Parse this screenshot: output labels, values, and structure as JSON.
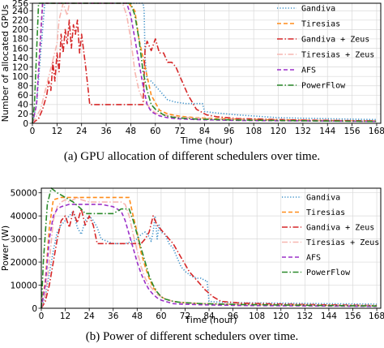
{
  "captions": {
    "top": "(a) GPU allocation of different schedulers over time.",
    "bottom": "(b) Power of different schedulers over time."
  },
  "colors": {
    "Gandiva": "#3a8fc8",
    "Tiresias": "#ff8c1a",
    "Gandiva + Zeus": "#d62728",
    "Tiresias + Zeus": "#f7b6b0",
    "AFS": "#9b30c8",
    "PowerFlow": "#2a8a2a"
  },
  "chart_data": [
    {
      "type": "line",
      "title": "",
      "xlabel": "Time (hour)",
      "ylabel": "Number of allocated GPUs",
      "xlim": [
        0,
        170
      ],
      "ylim": [
        0,
        256
      ],
      "xticks": [
        0,
        12,
        24,
        36,
        48,
        60,
        72,
        84,
        96,
        108,
        120,
        132,
        144,
        156,
        168
      ],
      "xtick_labels": [
        "0",
        "12",
        "24",
        "36",
        "48",
        "60",
        "72",
        "84",
        "96",
        "108",
        "120",
        "132",
        "144",
        "156",
        "168"
      ],
      "yticks": [
        0,
        20,
        40,
        60,
        80,
        100,
        120,
        140,
        160,
        180,
        200,
        220,
        240,
        256
      ],
      "ytick_labels": [
        "0",
        "20",
        "40",
        "60",
        "80",
        "100",
        "120",
        "140",
        "160",
        "180",
        "200",
        "220",
        "240",
        "256"
      ],
      "grid": true,
      "legend": "top-right",
      "series": [
        {
          "name": "Gandiva",
          "style": "dotted",
          "x": [
            0,
            2,
            6,
            48,
            52,
            54,
            54.5,
            55,
            56,
            58,
            60,
            62,
            64,
            66,
            70,
            75,
            80,
            83,
            84,
            90,
            100,
            120,
            140,
            168
          ],
          "y": [
            0,
            40,
            256,
            256,
            256,
            256,
            240,
            140,
            90,
            90,
            80,
            70,
            60,
            50,
            45,
            42,
            42,
            42,
            25,
            22,
            18,
            12,
            10,
            8
          ]
        },
        {
          "name": "Tiresias",
          "style": "dashed",
          "x": [
            0,
            2,
            5,
            47,
            50,
            52,
            55,
            58,
            62,
            66,
            72,
            80,
            90,
            110,
            140,
            168
          ],
          "y": [
            0,
            40,
            256,
            256,
            240,
            180,
            120,
            60,
            28,
            20,
            15,
            12,
            10,
            8,
            6,
            5
          ]
        },
        {
          "name": "Gandiva + Zeus",
          "style": "dashdot",
          "x": [
            0,
            3,
            5,
            7,
            8,
            9,
            10,
            11,
            12,
            13,
            14,
            15,
            16,
            17,
            18,
            19,
            20,
            21,
            22,
            23,
            24,
            26,
            28,
            30,
            40,
            48,
            52,
            54,
            55,
            56,
            58,
            60,
            62,
            64,
            66,
            68,
            70,
            72,
            76,
            80,
            85,
            90,
            100,
            130,
            168
          ],
          "y": [
            0,
            10,
            30,
            60,
            90,
            70,
            130,
            90,
            150,
            110,
            190,
            150,
            200,
            170,
            220,
            160,
            210,
            190,
            220,
            150,
            190,
            120,
            40,
            40,
            40,
            40,
            40,
            40,
            160,
            175,
            155,
            180,
            150,
            150,
            130,
            130,
            120,
            100,
            60,
            30,
            18,
            14,
            10,
            7,
            5
          ]
        },
        {
          "name": "Tiresias + Zeus",
          "style": "dashdot",
          "x": [
            0,
            4,
            8,
            12,
            13,
            15,
            17,
            18,
            20,
            22,
            24,
            28,
            32,
            36,
            40,
            44,
            46,
            48,
            50,
            52,
            54,
            56,
            58,
            60,
            64,
            70,
            80,
            90,
            110,
            140,
            168
          ],
          "y": [
            0,
            30,
            100,
            170,
            220,
            256,
            230,
            256,
            256,
            256,
            256,
            256,
            256,
            256,
            256,
            256,
            230,
            180,
            110,
            70,
            50,
            40,
            30,
            22,
            18,
            14,
            11,
            9,
            7,
            5,
            4
          ]
        },
        {
          "name": "AFS",
          "style": "dashed",
          "x": [
            0,
            2,
            5,
            46,
            48,
            50,
            52,
            54,
            56,
            58,
            60,
            62,
            66,
            70,
            80,
            100,
            140,
            168
          ],
          "y": [
            0,
            40,
            256,
            256,
            230,
            180,
            130,
            80,
            40,
            25,
            20,
            16,
            12,
            10,
            8,
            6,
            5,
            4
          ]
        },
        {
          "name": "PowerFlow",
          "style": "dashdot",
          "x": [
            0,
            1,
            3,
            48,
            50,
            52,
            54,
            56,
            58,
            60,
            62,
            64,
            66,
            70,
            80,
            100,
            140,
            168
          ],
          "y": [
            0,
            40,
            256,
            256,
            230,
            180,
            110,
            70,
            40,
            30,
            24,
            18,
            15,
            12,
            9,
            7,
            5,
            4
          ]
        }
      ]
    },
    {
      "type": "line",
      "title": "",
      "xlabel": "Time (hour)",
      "ylabel": "Power (W)",
      "xlim": [
        0,
        170
      ],
      "ylim": [
        0,
        52000
      ],
      "xticks": [
        0,
        12,
        24,
        36,
        48,
        60,
        72,
        84,
        96,
        108,
        120,
        132,
        144,
        156,
        168
      ],
      "xtick_labels": [
        "0",
        "12",
        "24",
        "36",
        "48",
        "60",
        "72",
        "84",
        "96",
        "108",
        "120",
        "132",
        "144",
        "156",
        "168"
      ],
      "yticks": [
        0,
        10000,
        20000,
        30000,
        40000,
        50000
      ],
      "ytick_labels": [
        "0",
        "10000",
        "20000",
        "30000",
        "40000",
        "50000"
      ],
      "grid": true,
      "legend": "top-right",
      "series": [
        {
          "name": "Gandiva",
          "style": "dotted",
          "x": [
            0,
            2,
            4,
            6,
            8,
            10,
            12,
            14,
            16,
            18,
            20,
            22,
            24,
            26,
            28,
            30,
            36,
            42,
            46,
            48,
            50,
            52,
            54,
            55,
            56,
            57,
            58,
            59,
            60,
            62,
            64,
            66,
            68,
            70,
            72,
            75,
            78,
            80,
            82,
            83,
            84,
            86,
            90,
            100,
            120,
            140,
            168
          ],
          "y": [
            0,
            5000,
            15000,
            25000,
            33000,
            36000,
            38000,
            40000,
            42000,
            35000,
            32000,
            38000,
            40000,
            38000,
            35000,
            30000,
            28000,
            28000,
            29000,
            30000,
            32000,
            33000,
            31000,
            29000,
            33000,
            40000,
            30000,
            36000,
            33000,
            32000,
            28000,
            26000,
            22000,
            18000,
            16000,
            14000,
            13000,
            13000,
            12000,
            12000,
            3000,
            2800,
            2600,
            2400,
            2200,
            2000,
            1800
          ]
        },
        {
          "name": "Tiresias",
          "style": "dashed",
          "x": [
            0,
            2,
            4,
            6,
            10,
            20,
            30,
            40,
            44,
            45,
            46,
            48,
            50,
            52,
            54,
            56,
            58,
            60,
            62,
            66,
            70,
            80,
            100,
            140,
            168
          ],
          "y": [
            0,
            12000,
            35000,
            47000,
            48000,
            48000,
            48000,
            48000,
            48000,
            44000,
            40000,
            33000,
            24000,
            18000,
            13000,
            9000,
            7000,
            5000,
            4000,
            3000,
            2500,
            2000,
            1600,
            1300,
            1000
          ]
        },
        {
          "name": "Gandiva + Zeus",
          "style": "dashdot",
          "x": [
            0,
            2,
            4,
            6,
            8,
            10,
            12,
            14,
            16,
            18,
            20,
            22,
            24,
            26,
            28,
            30,
            32,
            34,
            36,
            38,
            40,
            42,
            44,
            46,
            48,
            50,
            52,
            54,
            56,
            58,
            60,
            62,
            64,
            66,
            68,
            70,
            72,
            74,
            76,
            78,
            80,
            82,
            84,
            86,
            90,
            100,
            120,
            140,
            168
          ],
          "y": [
            0,
            3000,
            10000,
            20000,
            30000,
            38000,
            40000,
            35000,
            42000,
            37000,
            43000,
            36000,
            40000,
            36000,
            28000,
            28000,
            28000,
            28000,
            28000,
            28000,
            28000,
            28000,
            28000,
            28000,
            28000,
            28000,
            30000,
            33000,
            40000,
            36000,
            34000,
            32000,
            30000,
            28000,
            25000,
            22000,
            19000,
            16000,
            14000,
            12000,
            10000,
            8000,
            6500,
            5000,
            3000,
            2200,
            1800,
            1500,
            1200
          ]
        },
        {
          "name": "Tiresias + Zeus",
          "style": "dashdot",
          "x": [
            0,
            2,
            4,
            6,
            8,
            10,
            12,
            14,
            16,
            18,
            20,
            24,
            30,
            36,
            40,
            42,
            44,
            46,
            48,
            50,
            52,
            54,
            56,
            58,
            60,
            62,
            66,
            70,
            80,
            100,
            140,
            168
          ],
          "y": [
            0,
            6000,
            20000,
            38000,
            44000,
            46000,
            47000,
            46000,
            47000,
            48000,
            47000,
            46000,
            46000,
            46000,
            46000,
            45000,
            40000,
            32000,
            25000,
            18000,
            13000,
            10000,
            8000,
            6000,
            5000,
            4000,
            3000,
            2500,
            2000,
            1600,
            1200,
            1000
          ]
        },
        {
          "name": "AFS",
          "style": "dashed",
          "x": [
            0,
            2,
            4,
            6,
            8,
            10,
            14,
            18,
            24,
            30,
            36,
            40,
            42,
            44,
            46,
            48,
            50,
            52,
            54,
            56,
            58,
            60,
            62,
            64,
            66,
            70,
            80,
            100,
            140,
            168
          ],
          "y": [
            0,
            10000,
            30000,
            40000,
            43000,
            44000,
            45000,
            45000,
            45000,
            45000,
            44000,
            42000,
            38000,
            32000,
            26000,
            20000,
            15000,
            11000,
            8000,
            6000,
            4500,
            3500,
            3000,
            2500,
            2000,
            1800,
            1500,
            1200,
            1000,
            800
          ]
        },
        {
          "name": "PowerFlow",
          "style": "dashdot",
          "x": [
            0,
            1,
            3,
            5,
            8,
            12,
            16,
            20,
            22,
            24,
            30,
            36,
            40,
            44,
            46,
            48,
            50,
            52,
            54,
            56,
            58,
            60,
            62,
            64,
            66,
            70,
            80,
            100,
            140,
            168
          ],
          "y": [
            0,
            20000,
            45000,
            52000,
            50000,
            48000,
            46000,
            43000,
            41000,
            41000,
            41000,
            41000,
            43000,
            43000,
            38000,
            32000,
            26000,
            20000,
            14000,
            10000,
            7000,
            5000,
            4000,
            3500,
            3000,
            2500,
            2000,
            1600,
            1200,
            1000
          ]
        }
      ]
    }
  ]
}
